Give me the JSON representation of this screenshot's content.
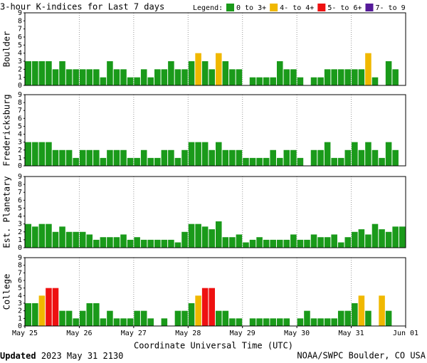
{
  "title": "3-hour K-indices for Last 7 days",
  "legend_title": "Legend:",
  "legend": [
    {
      "label": "0 to 3+",
      "color": "#1a9a1a"
    },
    {
      "label": "4- to 4+",
      "color": "#f0b800"
    },
    {
      "label": "5- to 6+",
      "color": "#ee1111"
    },
    {
      "label": "7- to 9",
      "color": "#551a99"
    }
  ],
  "day_labels": [
    "May 25",
    "May 26",
    "May 27",
    "May 28",
    "May 29",
    "May 30",
    "May 31",
    "Jun 01"
  ],
  "xlabel": "Coordinate Universal Time (UTC)",
  "updated_label": "Updated",
  "updated_time": "2023 May 31 2130",
  "source": "NOAA/SWPC Boulder, CO USA",
  "chart_data": [
    {
      "type": "bar",
      "ylabel": "Boulder",
      "ylim": [
        0,
        9
      ],
      "yticks": [
        0,
        1,
        2,
        3,
        4,
        5,
        6,
        7,
        8,
        9
      ],
      "values": [
        3,
        3,
        3,
        3,
        2,
        3,
        2,
        2,
        2,
        2,
        2,
        1,
        3,
        2,
        2,
        1,
        1,
        2,
        1,
        2,
        2,
        3,
        2,
        2,
        3,
        4,
        3,
        2,
        4,
        3,
        2,
        2,
        0,
        1,
        1,
        1,
        1,
        3,
        2,
        2,
        1,
        0,
        1,
        1,
        2,
        2,
        2,
        2,
        2,
        2,
        4,
        1,
        0,
        3,
        2,
        0
      ]
    },
    {
      "type": "bar",
      "ylabel": "Fredericksburg",
      "ylim": [
        0,
        9
      ],
      "yticks": [
        0,
        1,
        2,
        3,
        4,
        5,
        6,
        7,
        8,
        9
      ],
      "values": [
        3,
        3,
        3,
        3,
        2,
        2,
        2,
        1,
        2,
        2,
        2,
        1,
        2,
        2,
        2,
        1,
        1,
        2,
        1,
        1,
        2,
        2,
        1,
        2,
        3,
        3,
        3,
        2,
        3,
        2,
        2,
        2,
        1,
        1,
        1,
        1,
        2,
        1,
        2,
        2,
        1,
        0,
        2,
        2,
        3,
        1,
        1,
        2,
        3,
        2,
        3,
        2,
        1,
        3,
        2,
        0
      ]
    },
    {
      "type": "bar",
      "ylabel": "Est. Planetary",
      "ylim": [
        0,
        9
      ],
      "yticks": [
        0,
        1,
        2,
        3,
        4,
        5,
        6,
        7,
        8,
        9
      ],
      "values": [
        3,
        2.67,
        3,
        3,
        2,
        2.67,
        2,
        2,
        2,
        1.67,
        1,
        1.33,
        1.33,
        1.33,
        1.67,
        1,
        1.33,
        1,
        1,
        1,
        1,
        1,
        0.67,
        2,
        3,
        3,
        2.67,
        2.33,
        3.33,
        1.33,
        1.33,
        1.67,
        0.67,
        1,
        1.33,
        1,
        1,
        1,
        1,
        1.67,
        1,
        1,
        1.67,
        1.33,
        1.33,
        1.67,
        0.67,
        1.33,
        2,
        2.33,
        1.67,
        3,
        2.33,
        2,
        2.67,
        2.67
      ]
    },
    {
      "type": "bar",
      "ylabel": "College",
      "ylim": [
        0,
        9
      ],
      "yticks": [
        0,
        1,
        2,
        3,
        4,
        5,
        6,
        7,
        8,
        9
      ],
      "values": [
        3,
        3,
        4,
        5,
        5,
        2,
        2,
        1,
        2,
        3,
        3,
        1,
        2,
        1,
        1,
        1,
        2,
        2,
        1,
        0,
        1,
        0,
        2,
        2,
        3,
        4,
        5,
        5,
        2,
        2,
        1,
        1,
        0,
        1,
        1,
        1,
        1,
        1,
        1,
        0,
        1,
        2,
        1,
        1,
        1,
        1,
        2,
        2,
        3,
        4,
        2,
        0,
        4,
        2,
        0,
        0
      ]
    }
  ]
}
